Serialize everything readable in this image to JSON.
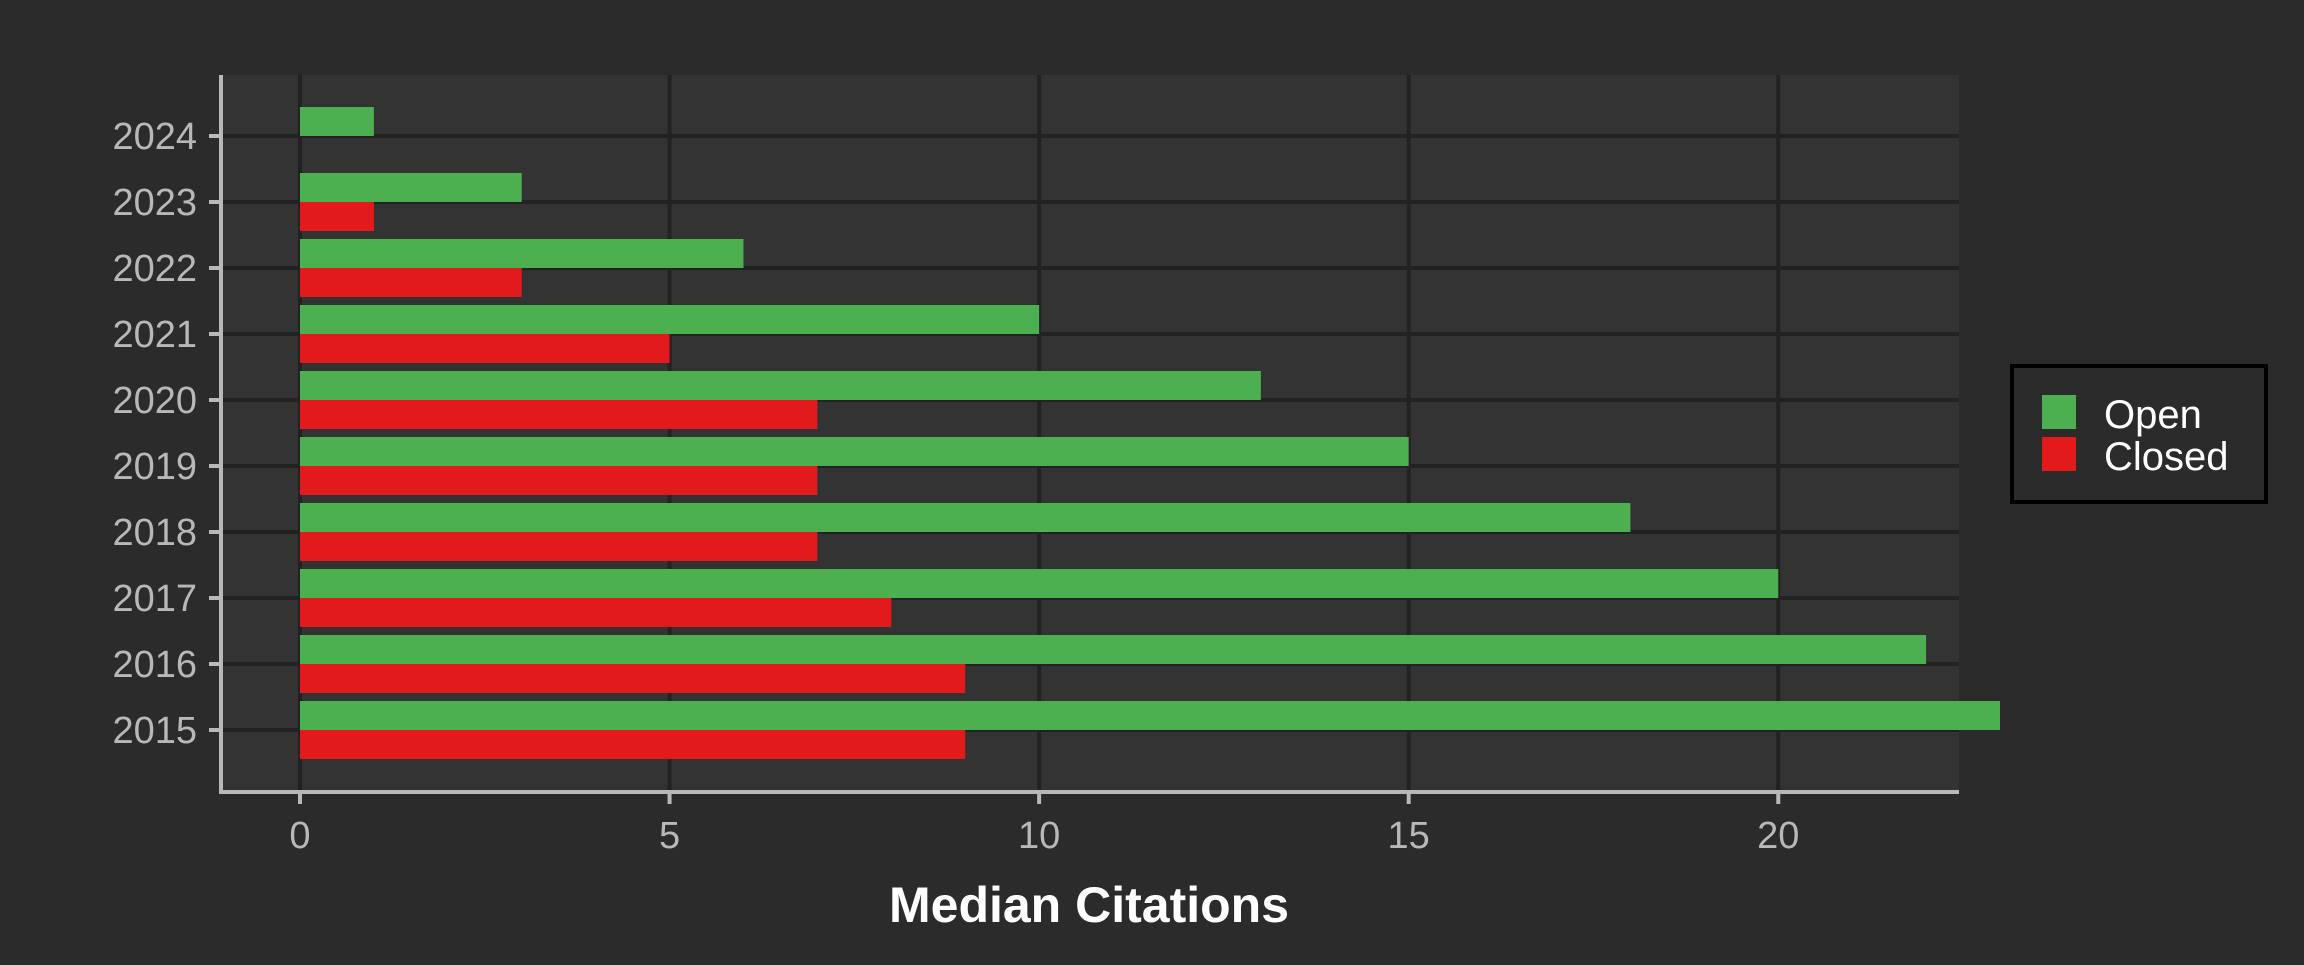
{
  "chart_data": {
    "type": "bar",
    "orientation": "horizontal",
    "categories": [
      "2015",
      "2016",
      "2017",
      "2018",
      "2019",
      "2020",
      "2021",
      "2022",
      "2023",
      "2024"
    ],
    "series": [
      {
        "name": "Open",
        "color": "#4caf50",
        "values": [
          23,
          22,
          20,
          18,
          15,
          13,
          10,
          6,
          3,
          1
        ]
      },
      {
        "name": "Closed",
        "color": "#e31a1c",
        "values": [
          9,
          9,
          8,
          7,
          7,
          7,
          5,
          3,
          1,
          null
        ]
      }
    ],
    "xlabel": "Median Citations",
    "ylabel": "",
    "xlim": [
      0,
      24.2
    ],
    "xticks": [
      0,
      5,
      10,
      15,
      20
    ],
    "grid": true,
    "legend_position": "right"
  },
  "colors": {
    "background": "#2b2b2b",
    "panel": "#333333",
    "grid": "#222222",
    "axis": "#b8b8b8"
  }
}
